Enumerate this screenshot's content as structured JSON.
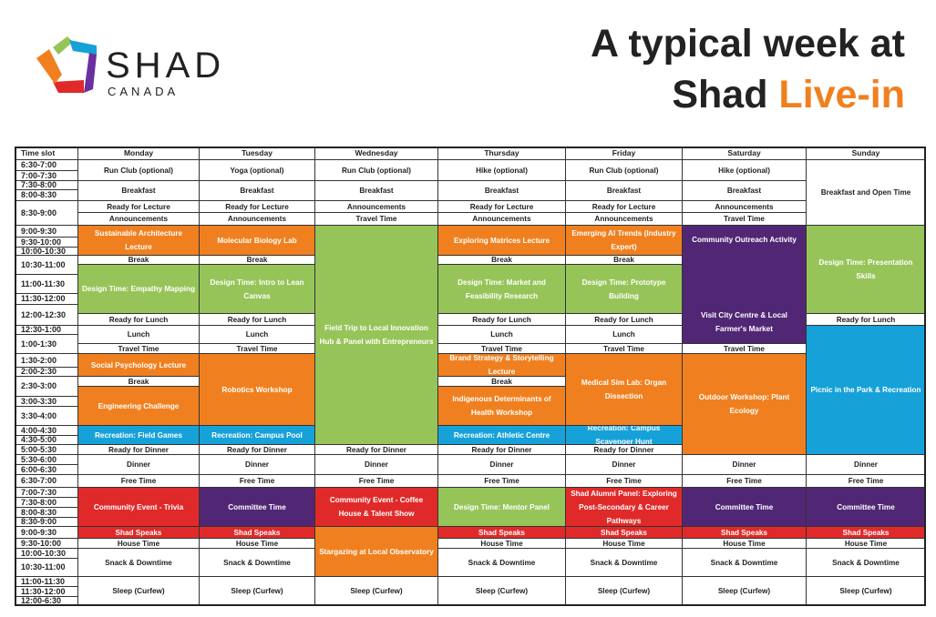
{
  "brand": {
    "name": "SHAD",
    "sub": "CANADA"
  },
  "title": {
    "line1": "A typical week at",
    "line2_prefix": "Shad ",
    "line2_accent": "Live-in"
  },
  "colors": {
    "orange": "#f0801f",
    "green": "#97c459",
    "blue": "#17a1d9",
    "purple": "#512775",
    "red": "#e02a2a",
    "white": "#ffffff"
  },
  "time_header": "Time slot",
  "time_slots": [
    "6:30-7:00",
    "7:00-7:30",
    "7:30-8:00",
    "8:00-8:30",
    "8:30-9:00",
    "9:00-9:30",
    "9:30-10:00",
    "10:00-10:30",
    "10:30-11:00",
    "11:00-11:30",
    "11:30-12:00",
    "12:00-12:30",
    "12:30-1:00",
    "1:00-1:30",
    "1:30-2:00",
    "2:00-2:30",
    "2:30-3:00",
    "3:00-3:30",
    "3:30-4:00",
    "4:00-4:30",
    "4:30-5:00",
    "5:00-5:30",
    "5:30-6:00",
    "6:00-6:30",
    "6:30-7:00",
    "7:00-7:30",
    "7:30-8:00",
    "8:00-8:30",
    "8:30-9:00",
    "9:00-9:30",
    "9:30-10:00",
    "10:00-10:30",
    "10:30-11:00",
    "11:00-11:30",
    "11:30-12:00",
    "12:00-6:30"
  ],
  "days": [
    {
      "name": "Monday",
      "events": [
        {
          "label": "Run Club (optional)",
          "color": "white"
        },
        {
          "label": "Breakfast",
          "color": "white"
        },
        {
          "label": "Ready for Lecture",
          "color": "white"
        },
        {
          "label": "Announcements",
          "color": "white"
        },
        {
          "label": "Sustainable Architecture Lecture",
          "color": "orange"
        },
        {
          "label": "Break",
          "color": "white"
        },
        {
          "label": "Design Time: Empathy Mapping",
          "color": "green"
        },
        {
          "label": "Ready for Lunch",
          "color": "white"
        },
        {
          "label": "Lunch",
          "color": "white"
        },
        {
          "label": "Travel Time",
          "color": "white"
        },
        {
          "label": "Social Psychology Lecture",
          "color": "orange"
        },
        {
          "label": "Break",
          "color": "white"
        },
        {
          "label": "Engineering Challenge",
          "color": "orange"
        },
        {
          "label": "Recreation: Field Games",
          "color": "blue"
        },
        {
          "label": "Ready for Dinner",
          "color": "white"
        },
        {
          "label": "Dinner",
          "color": "white"
        },
        {
          "label": "Free Time",
          "color": "white"
        },
        {
          "label": "Community Event - Trivia",
          "color": "red"
        },
        {
          "label": "Shad Speaks",
          "color": "red"
        },
        {
          "label": "House Time",
          "color": "white"
        },
        {
          "label": "Snack & Downtime",
          "color": "white"
        },
        {
          "label": "Sleep (Curfew)",
          "color": "white"
        }
      ]
    },
    {
      "name": "Tuesday",
      "events": [
        {
          "label": "Yoga (optional)",
          "color": "white"
        },
        {
          "label": "Breakfast",
          "color": "white"
        },
        {
          "label": "Ready for Lecture",
          "color": "white"
        },
        {
          "label": "Announcements",
          "color": "white"
        },
        {
          "label": "Molecular Biology Lab",
          "color": "orange"
        },
        {
          "label": "Break",
          "color": "white"
        },
        {
          "label": "Design Time: Intro to Lean Canvas",
          "color": "green"
        },
        {
          "label": "Ready for Lunch",
          "color": "white"
        },
        {
          "label": "Lunch",
          "color": "white"
        },
        {
          "label": "Travel Time",
          "color": "white"
        },
        {
          "label": "Robotics Workshop",
          "color": "orange"
        },
        {
          "label": "Recreation: Campus Pool",
          "color": "blue"
        },
        {
          "label": "Ready for Dinner",
          "color": "white"
        },
        {
          "label": "Dinner",
          "color": "white"
        },
        {
          "label": "Free Time",
          "color": "white"
        },
        {
          "label": "Committee Time",
          "color": "purple"
        },
        {
          "label": "Shad Speaks",
          "color": "red"
        },
        {
          "label": "House Time",
          "color": "white"
        },
        {
          "label": "Snack & Downtime",
          "color": "white"
        },
        {
          "label": "Sleep (Curfew)",
          "color": "white"
        }
      ]
    },
    {
      "name": "Wednesday",
      "events": [
        {
          "label": "Run Club (optional)",
          "color": "white"
        },
        {
          "label": "Breakfast",
          "color": "white"
        },
        {
          "label": "Announcements",
          "color": "white"
        },
        {
          "label": "Travel Time",
          "color": "white"
        },
        {
          "label": "Field Trip to Local Innovation Hub & Panel with Entrepreneurs",
          "color": "green"
        },
        {
          "label": "Ready for Dinner",
          "color": "white"
        },
        {
          "label": "Dinner",
          "color": "white"
        },
        {
          "label": "Free Time",
          "color": "white"
        },
        {
          "label": "Community Event - Coffee House & Talent Show",
          "color": "red"
        },
        {
          "label": "Stargazing at Local Observatory",
          "color": "orange"
        },
        {
          "label": "Sleep (Curfew)",
          "color": "white"
        }
      ]
    },
    {
      "name": "Thursday",
      "events": [
        {
          "label": "Hike (optional)",
          "color": "white"
        },
        {
          "label": "Breakfast",
          "color": "white"
        },
        {
          "label": "Ready for Lecture",
          "color": "white"
        },
        {
          "label": "Announcements",
          "color": "white"
        },
        {
          "label": "Exploring Matrices Lecture",
          "color": "orange"
        },
        {
          "label": "Break",
          "color": "white"
        },
        {
          "label": "Design Time: Market and Feasibility Research",
          "color": "green"
        },
        {
          "label": "Ready for Lunch",
          "color": "white"
        },
        {
          "label": "Lunch",
          "color": "white"
        },
        {
          "label": "Travel Time",
          "color": "white"
        },
        {
          "label": "Brand Strategy & Storytelling Lecture",
          "color": "orange"
        },
        {
          "label": "Break",
          "color": "white"
        },
        {
          "label": "Indigenous Determinants of Health Workshop",
          "color": "orange"
        },
        {
          "label": "Recreation: Athletic Centre",
          "color": "blue"
        },
        {
          "label": "Ready for Dinner",
          "color": "white"
        },
        {
          "label": "Dinner",
          "color": "white"
        },
        {
          "label": "Free Time",
          "color": "white"
        },
        {
          "label": "Design Time: Mentor Panel",
          "color": "green"
        },
        {
          "label": "Shad Speaks",
          "color": "red"
        },
        {
          "label": "House Time",
          "color": "white"
        },
        {
          "label": "Snack & Downtime",
          "color": "white"
        },
        {
          "label": "Sleep (Curfew)",
          "color": "white"
        }
      ]
    },
    {
      "name": "Friday",
      "events": [
        {
          "label": "Run Club (optional)",
          "color": "white"
        },
        {
          "label": "Breakfast",
          "color": "white"
        },
        {
          "label": "Ready for Lecture",
          "color": "white"
        },
        {
          "label": "Announcements",
          "color": "white"
        },
        {
          "label": "Emerging AI Trends (Industry Expert)",
          "color": "orange"
        },
        {
          "label": "Break",
          "color": "white"
        },
        {
          "label": "Design Time: Prototype Building",
          "color": "green"
        },
        {
          "label": "Ready for Lunch",
          "color": "white"
        },
        {
          "label": "Lunch",
          "color": "white"
        },
        {
          "label": "Travel Time",
          "color": "white"
        },
        {
          "label": "Medical Sim Lab: Organ Dissection",
          "color": "orange"
        },
        {
          "label": "Recreation: Campus Scavenger Hunt",
          "color": "blue"
        },
        {
          "label": "Ready for Dinner",
          "color": "white"
        },
        {
          "label": "Dinner",
          "color": "white"
        },
        {
          "label": "Free Time",
          "color": "white"
        },
        {
          "label": "Shad Alumni Panel: Exploring Post-Secondary & Career Pathways",
          "color": "red"
        },
        {
          "label": "Shad Speaks",
          "color": "red"
        },
        {
          "label": "House Time",
          "color": "white"
        },
        {
          "label": "Snack & Downtime",
          "color": "white"
        },
        {
          "label": "Sleep (Curfew)",
          "color": "white"
        }
      ]
    },
    {
      "name": "Saturday",
      "events": [
        {
          "label": "Hike (optional)",
          "color": "white"
        },
        {
          "label": "Breakfast",
          "color": "white"
        },
        {
          "label": "Announcements",
          "color": "white"
        },
        {
          "label": "Travel Time",
          "color": "white"
        },
        {
          "label": "Community Outreach Activity",
          "label2": "Visit City Centre & Local Farmer's Market",
          "color": "purple"
        },
        {
          "label": "Travel Time",
          "color": "white"
        },
        {
          "label": "Outdoor Workshop: Plant Ecology",
          "color": "orange"
        },
        {
          "label": "Dinner",
          "color": "white"
        },
        {
          "label": "Free Time",
          "color": "white"
        },
        {
          "label": "Committee Time",
          "color": "purple"
        },
        {
          "label": "Shad Speaks",
          "color": "red"
        },
        {
          "label": "House Time",
          "color": "white"
        },
        {
          "label": "Snack & Downtime",
          "color": "white"
        },
        {
          "label": "Sleep (Curfew)",
          "color": "white"
        }
      ]
    },
    {
      "name": "Sunday",
      "events": [
        {
          "label": "Breakfast and Open Time",
          "color": "white"
        },
        {
          "label": "Design Time: Presentation Skills",
          "color": "green"
        },
        {
          "label": "Ready for Lunch",
          "color": "white"
        },
        {
          "label": "Picnic in the Park & Recreation",
          "color": "blue"
        },
        {
          "label": "Dinner",
          "color": "white"
        },
        {
          "label": "Free Time",
          "color": "white"
        },
        {
          "label": "Committee Time",
          "color": "purple"
        },
        {
          "label": "Shad Speaks",
          "color": "red"
        },
        {
          "label": "House Time",
          "color": "white"
        },
        {
          "label": "Snack & Downtime",
          "color": "white"
        },
        {
          "label": "Sleep (Curfew)",
          "color": "white"
        }
      ]
    }
  ]
}
